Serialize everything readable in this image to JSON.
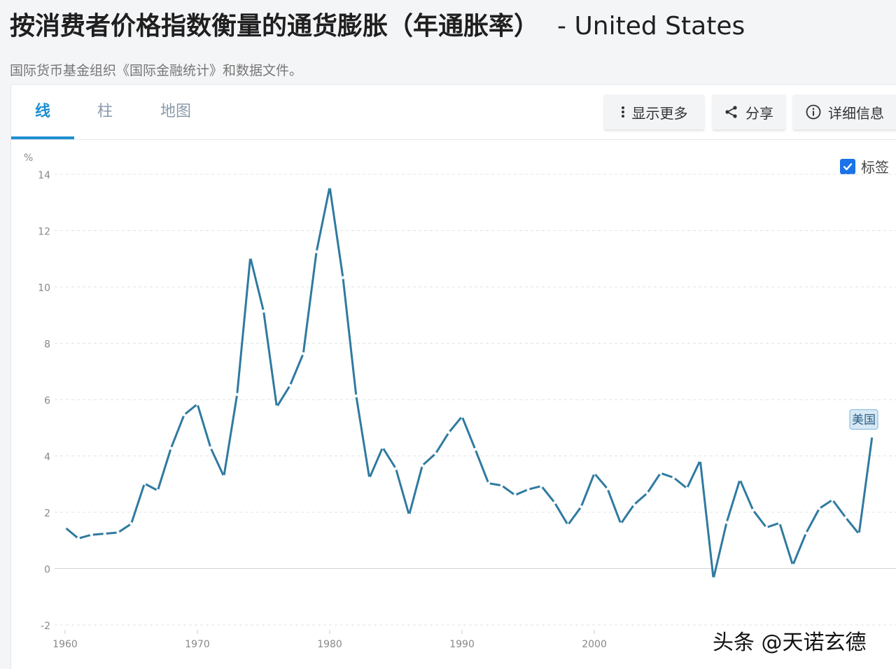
{
  "header": {
    "title": "按消费者价格指数衡量的通货膨胀（年通胀率）",
    "country": "- United States",
    "source": "国际货币基金组织《国际金融统计》和数据文件。"
  },
  "tabs": [
    {
      "label": "线",
      "active": true
    },
    {
      "label": "柱",
      "active": false
    },
    {
      "label": "地图",
      "active": false
    }
  ],
  "toolbar": {
    "more_label": "显示更多",
    "share_label": "分享",
    "details_label": "详细信息"
  },
  "legend_toggle": {
    "label": "标签",
    "checked": true
  },
  "watermark": "头条 @天诺玄德",
  "colors": {
    "line": "#2f7aa0",
    "accent": "#1e8fd0",
    "checkbox": "#1a73e8"
  },
  "chart_data": {
    "type": "line",
    "ylabel": "%",
    "ylim": [
      -2,
      14
    ],
    "yticks": [
      -2,
      0,
      2,
      4,
      6,
      8,
      10,
      12,
      14
    ],
    "xlim": [
      1960,
      2021
    ],
    "xticks": [
      1960,
      1970,
      1980,
      1990,
      2000
    ],
    "grid": true,
    "series": [
      {
        "name": "美国",
        "x": [
          1960,
          1961,
          1962,
          1963,
          1964,
          1965,
          1966,
          1967,
          1968,
          1969,
          1970,
          1971,
          1972,
          1973,
          1974,
          1975,
          1976,
          1977,
          1978,
          1979,
          1980,
          1981,
          1982,
          1983,
          1984,
          1985,
          1986,
          1987,
          1988,
          1989,
          1990,
          1991,
          1992,
          1993,
          1994,
          1995,
          1996,
          1997,
          1998,
          1999,
          2000,
          2001,
          2002,
          2003,
          2004,
          2005,
          2006,
          2007,
          2008,
          2009,
          2010,
          2011,
          2012,
          2013,
          2014,
          2015,
          2016,
          2017,
          2018,
          2019,
          2020,
          2021
        ],
        "values": [
          1.46,
          1.07,
          1.2,
          1.24,
          1.28,
          1.59,
          3.02,
          2.77,
          4.27,
          5.46,
          5.84,
          4.29,
          3.27,
          6.18,
          11.05,
          9.14,
          5.74,
          6.5,
          7.63,
          11.25,
          13.55,
          10.33,
          6.13,
          3.21,
          4.3,
          3.55,
          1.9,
          3.66,
          4.08,
          4.83,
          5.4,
          4.23,
          3.03,
          2.95,
          2.61,
          2.81,
          2.93,
          2.34,
          1.55,
          2.19,
          3.38,
          2.83,
          1.59,
          2.27,
          2.68,
          3.39,
          3.23,
          2.85,
          3.84,
          -0.36,
          1.64,
          3.16,
          2.07,
          1.46,
          1.62,
          0.12,
          1.26,
          2.13,
          2.44,
          1.81,
          1.23,
          4.7
        ]
      }
    ]
  }
}
